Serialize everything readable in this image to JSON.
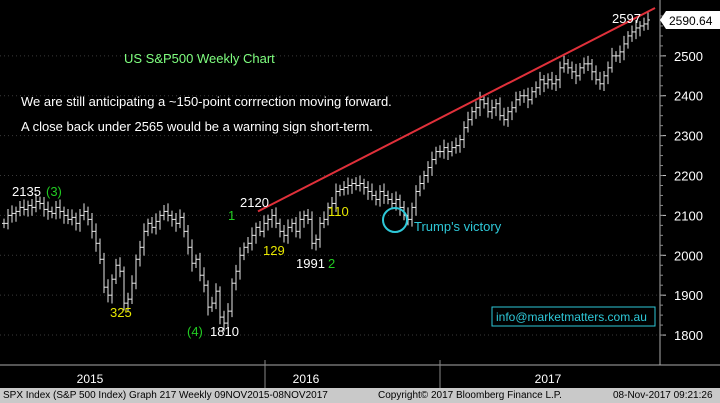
{
  "chart_data": {
    "type": "candlestick",
    "title": "US S&P500 Weekly Chart",
    "notes": [
      "We are still anticipating a ~150-point corrrection moving forward.",
      "A close back under 2565 would be a warning sign short-term."
    ],
    "ylim": [
      1750,
      2620
    ],
    "y_ticks": [
      1800,
      1900,
      2000,
      2100,
      2200,
      2300,
      2400,
      2500
    ],
    "x_year_labels": [
      "2015",
      "2016",
      "2017"
    ],
    "last_price": "2590.64",
    "series": [
      {
        "values": [
          2080,
          2100,
          2105,
          2110,
          2120,
          2115,
          2125,
          2120,
          2135,
          2130,
          2115,
          2110,
          2105,
          2120,
          2110,
          2100,
          2090,
          2095,
          2080,
          2100,
          2110,
          2090,
          2060,
          2030,
          1990,
          1920,
          1900,
          1940,
          1975,
          1960,
          1880,
          1890,
          1930,
          1990,
          2020,
          2060,
          2080,
          2070,
          2085,
          2100,
          2110,
          2100,
          2090,
          2080,
          2095,
          2060,
          2020,
          1980,
          1990,
          1950,
          1925,
          1870,
          1880,
          1910,
          1845,
          1830,
          1860,
          1930,
          1960,
          2000,
          2020,
          2030,
          2050,
          2070,
          2060,
          2080,
          2090,
          2100,
          2080,
          2060,
          2050,
          2070,
          2080,
          2060,
          2090,
          2100,
          2090,
          2030,
          2040,
          2080,
          2090,
          2120,
          2130,
          2160,
          2165,
          2170,
          2175,
          2180,
          2175,
          2180,
          2170,
          2160,
          2150,
          2140,
          2160,
          2150,
          2140,
          2130,
          2140,
          2120,
          2100,
          2090,
          2120,
          2160,
          2180,
          2200,
          2220,
          2240,
          2260,
          2260,
          2270,
          2260,
          2270,
          2275,
          2290,
          2320,
          2340,
          2360,
          2370,
          2390,
          2380,
          2360,
          2370,
          2380,
          2350,
          2340,
          2360,
          2370,
          2390,
          2400,
          2400,
          2390,
          2410,
          2420,
          2440,
          2430,
          2440,
          2430,
          2440,
          2470,
          2480,
          2470,
          2460,
          2450,
          2470,
          2480,
          2480,
          2460,
          2440,
          2430,
          2450,
          2470,
          2500,
          2500,
          2510,
          2530,
          2550,
          2560,
          2570,
          2575,
          2580,
          2590
        ]
      }
    ],
    "annotations": [
      {
        "text": "2135",
        "color": "#ffffff"
      },
      {
        "text": "(3)",
        "color": "#22cc22"
      },
      {
        "text": "325",
        "color": "#e8e800"
      },
      {
        "text": "(4)",
        "color": "#22cc22"
      },
      {
        "text": "1810",
        "color": "#ffffff"
      },
      {
        "text": "1",
        "color": "#22cc22"
      },
      {
        "text": "2120",
        "color": "#ffffff"
      },
      {
        "text": "129",
        "color": "#e8e800"
      },
      {
        "text": "1991",
        "color": "#ffffff"
      },
      {
        "text": "2",
        "color": "#22cc22"
      },
      {
        "text": "110",
        "color": "#e8e800"
      },
      {
        "text": "Trump's victory",
        "color": "#2ec8d8"
      },
      {
        "text": "2597",
        "color": "#ffffff"
      }
    ],
    "trendline": {
      "color": "#e0303a",
      "from_value": 2110,
      "to_value": 2620
    },
    "watermark": "info@marketmatters.com.au"
  },
  "footer": {
    "left": "SPX Index (S&P 500 Index) Graph 217  Weekly 09NOV2015-08NOV2017",
    "copyright": "Copyright© 2017 Bloomberg Finance L.P.",
    "timestamp": "08-Nov-2017  09:21:26"
  }
}
